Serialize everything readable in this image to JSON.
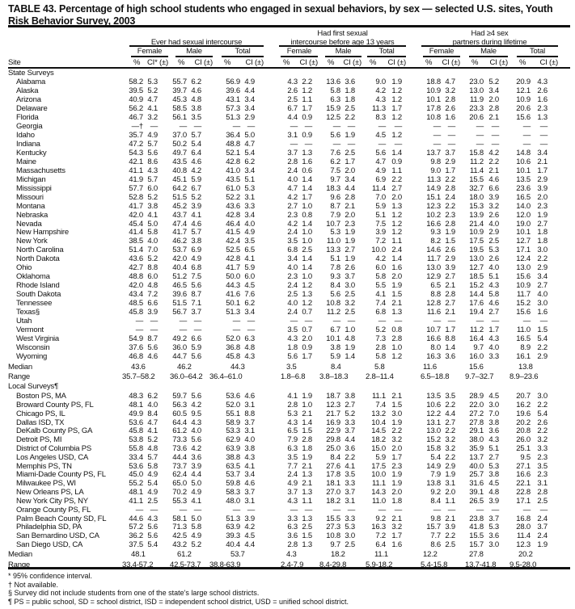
{
  "title": "TABLE 43. Percentage of high school students who engaged in sexual behaviors, by sex — selected U.S. sites, Youth Risk Behavior Survey, 2003",
  "header": {
    "site": "Site",
    "groups": [
      {
        "label_lines": [
          "",
          "Ever had sexual intercourse"
        ]
      },
      {
        "label_lines": [
          "Had first sexual",
          "intercourse before age 13 years"
        ]
      },
      {
        "label_lines": [
          "Had ≥4 sex",
          "partners during lifetime"
        ]
      }
    ],
    "sexes": [
      "Female",
      "Male",
      "Total"
    ],
    "pct": "%",
    "ci_first": "CI* (±)",
    "ci": "CI (±)"
  },
  "sections": [
    {
      "label": "State Surveys",
      "rows": [
        [
          "Alabama",
          "58.2",
          "5.3",
          "55.7",
          "6.2",
          "56.9",
          "4.9",
          "4.3",
          "2.2",
          "13.6",
          "3.6",
          "9.0",
          "1.9",
          "18.8",
          "4.7",
          "23.0",
          "5.2",
          "20.9",
          "4.3"
        ],
        [
          "Alaska",
          "39.5",
          "5.2",
          "39.7",
          "4.6",
          "39.6",
          "4.4",
          "2.6",
          "1.2",
          "5.8",
          "1.8",
          "4.2",
          "1.2",
          "10.9",
          "3.2",
          "13.0",
          "3.4",
          "12.1",
          "2.6"
        ],
        [
          "Arizona",
          "40.9",
          "4.7",
          "45.3",
          "4.8",
          "43.1",
          "3.4",
          "2.5",
          "1.1",
          "6.3",
          "1.8",
          "4.3",
          "1.2",
          "10.1",
          "2.8",
          "11.9",
          "2.0",
          "10.9",
          "1.6"
        ],
        [
          "Delaware",
          "56.2",
          "4.1",
          "58.5",
          "3.8",
          "57.3",
          "3.4",
          "6.7",
          "1.7",
          "15.9",
          "2.5",
          "11.3",
          "1.7",
          "17.8",
          "2.6",
          "23.3",
          "2.8",
          "20.6",
          "2.3"
        ],
        [
          "Florida",
          "46.7",
          "3.2",
          "56.1",
          "3.5",
          "51.3",
          "2.9",
          "4.4",
          "0.9",
          "12.5",
          "2.2",
          "8.3",
          "1.2",
          "10.8",
          "1.6",
          "20.6",
          "2.1",
          "15.6",
          "1.3"
        ],
        [
          "Georgia",
          "—†",
          "—",
          "—",
          "—",
          "—",
          "—",
          "—",
          "—",
          "—",
          "—",
          "—",
          "—",
          "—",
          "—",
          "—",
          "—",
          "—",
          "—"
        ],
        [
          "Idaho",
          "35.7",
          "4.9",
          "37.0",
          "5.7",
          "36.4",
          "5.0",
          "3.1",
          "0.9",
          "5.6",
          "1.9",
          "4.5",
          "1.2",
          "—",
          "—",
          "—",
          "—",
          "—",
          "—"
        ],
        [
          "Indiana",
          "47.2",
          "5.7",
          "50.2",
          "5.4",
          "48.8",
          "4.7",
          "—",
          "—",
          "—",
          "—",
          "—",
          "—",
          "—",
          "—",
          "—",
          "—",
          "—",
          "—"
        ],
        [
          "Kentucky",
          "54.3",
          "5.6",
          "49.7",
          "6.4",
          "52.1",
          "5.4",
          "3.7",
          "1.3",
          "7.6",
          "2.5",
          "5.6",
          "1.4",
          "13.7",
          "3.7",
          "15.8",
          "4.2",
          "14.8",
          "3.4"
        ],
        [
          "Maine",
          "42.1",
          "8.6",
          "43.5",
          "4.6",
          "42.8",
          "6.2",
          "2.8",
          "1.6",
          "6.2",
          "1.7",
          "4.7",
          "0.9",
          "9.8",
          "2.9",
          "11.2",
          "2.2",
          "10.6",
          "2.1"
        ],
        [
          "Massachusetts",
          "41.1",
          "4.3",
          "40.8",
          "4.2",
          "41.0",
          "3.4",
          "2.4",
          "0.6",
          "7.5",
          "2.0",
          "4.9",
          "1.1",
          "9.0",
          "1.7",
          "11.4",
          "2.1",
          "10.1",
          "1.7"
        ],
        [
          "Michigan",
          "41.9",
          "5.7",
          "45.1",
          "5.9",
          "43.5",
          "5.1",
          "4.0",
          "1.4",
          "9.7",
          "3.4",
          "6.9",
          "2.2",
          "11.3",
          "2.2",
          "15.5",
          "4.6",
          "13.5",
          "2.9"
        ],
        [
          "Mississippi",
          "57.7",
          "6.0",
          "64.2",
          "6.7",
          "61.0",
          "5.3",
          "4.7",
          "1.4",
          "18.3",
          "4.4",
          "11.4",
          "2.7",
          "14.9",
          "2.8",
          "32.7",
          "6.6",
          "23.6",
          "3.9"
        ],
        [
          "Missouri",
          "52.8",
          "5.2",
          "51.5",
          "5.2",
          "52.2",
          "3.1",
          "4.2",
          "1.7",
          "9.6",
          "2.8",
          "7.0",
          "2.0",
          "15.1",
          "2.4",
          "18.0",
          "3.9",
          "16.5",
          "2.0"
        ],
        [
          "Montana",
          "41.7",
          "3.8",
          "45.2",
          "3.9",
          "43.6",
          "3.3",
          "2.7",
          "1.0",
          "8.7",
          "2.1",
          "5.9",
          "1.3",
          "12.3",
          "2.2",
          "15.3",
          "3.2",
          "14.0",
          "2.3"
        ],
        [
          "Nebraska",
          "42.0",
          "4.1",
          "43.7",
          "4.1",
          "42.8",
          "3.4",
          "2.3",
          "0.8",
          "7.9",
          "2.0",
          "5.1",
          "1.2",
          "10.2",
          "2.3",
          "13.9",
          "2.6",
          "12.0",
          "1.9"
        ],
        [
          "Nevada",
          "45.4",
          "5.0",
          "47.4",
          "4.6",
          "46.4",
          "4.0",
          "4.2",
          "1.4",
          "10.7",
          "2.3",
          "7.5",
          "1.2",
          "16.6",
          "2.8",
          "21.4",
          "4.0",
          "19.0",
          "2.7"
        ],
        [
          "New Hampshire",
          "41.4",
          "5.8",
          "41.7",
          "5.7",
          "41.5",
          "4.9",
          "2.4",
          "1.0",
          "5.3",
          "1.9",
          "3.9",
          "1.2",
          "9.3",
          "1.9",
          "10.9",
          "2.9",
          "10.1",
          "1.8"
        ],
        [
          "New York",
          "38.5",
          "4.0",
          "46.2",
          "3.8",
          "42.4",
          "3.5",
          "3.5",
          "1.0",
          "11.0",
          "1.9",
          "7.2",
          "1.1",
          "8.2",
          "1.5",
          "17.5",
          "2.5",
          "12.7",
          "1.8"
        ],
        [
          "North Carolina",
          "51.4",
          "7.0",
          "53.7",
          "6.9",
          "52.5",
          "6.5",
          "6.8",
          "2.5",
          "13.3",
          "2.7",
          "10.0",
          "2.4",
          "14.6",
          "2.6",
          "19.5",
          "5.3",
          "17.1",
          "3.0"
        ],
        [
          "North Dakota",
          "43.6",
          "5.2",
          "42.0",
          "4.9",
          "42.8",
          "4.1",
          "3.4",
          "1.4",
          "5.1",
          "1.9",
          "4.2",
          "1.4",
          "11.7",
          "2.9",
          "13.0",
          "2.6",
          "12.4",
          "2.2"
        ],
        [
          "Ohio",
          "42.7",
          "8.8",
          "40.4",
          "6.8",
          "41.7",
          "5.9",
          "4.0",
          "1.4",
          "7.8",
          "2.6",
          "6.0",
          "1.6",
          "13.0",
          "3.9",
          "12.7",
          "4.0",
          "13.0",
          "2.9"
        ],
        [
          "Oklahoma",
          "48.8",
          "6.0",
          "51.2",
          "7.5",
          "50.0",
          "6.0",
          "2.3",
          "1.0",
          "9.3",
          "3.7",
          "5.8",
          "2.0",
          "12.9",
          "2.7",
          "18.5",
          "5.1",
          "15.6",
          "3.4"
        ],
        [
          "Rhode Island",
          "42.0",
          "4.8",
          "46.5",
          "5.6",
          "44.3",
          "4.5",
          "2.4",
          "1.2",
          "8.4",
          "3.0",
          "5.5",
          "1.9",
          "6.5",
          "2.1",
          "15.2",
          "4.3",
          "10.9",
          "2.7"
        ],
        [
          "South Dakota",
          "43.4",
          "7.2",
          "39.6",
          "8.7",
          "41.6",
          "7.6",
          "2.5",
          "1.3",
          "5.6",
          "2.5",
          "4.1",
          "1.5",
          "8.8",
          "2.8",
          "14.4",
          "5.8",
          "11.7",
          "4.0"
        ],
        [
          "Tennessee",
          "48.5",
          "6.6",
          "51.5",
          "7.1",
          "50.1",
          "6.2",
          "4.0",
          "1.2",
          "10.8",
          "3.2",
          "7.4",
          "2.1",
          "12.8",
          "2.7",
          "17.6",
          "4.6",
          "15.2",
          "3.0"
        ],
        [
          "Texas§",
          "45.8",
          "3.9",
          "56.7",
          "3.7",
          "51.3",
          "3.4",
          "2.4",
          "0.7",
          "11.2",
          "2.5",
          "6.8",
          "1.3",
          "11.6",
          "2.1",
          "19.4",
          "2.7",
          "15.6",
          "1.6"
        ],
        [
          "Utah",
          "—",
          "—",
          "—",
          "—",
          "—",
          "—",
          "—",
          "—",
          "—",
          "—",
          "—",
          "—",
          "—",
          "—",
          "—",
          "—",
          "—",
          "—"
        ],
        [
          "Vermont",
          "—",
          "—",
          "—",
          "—",
          "—",
          "—",
          "3.5",
          "0.7",
          "6.7",
          "1.0",
          "5.2",
          "0.8",
          "10.7",
          "1.7",
          "11.2",
          "1.7",
          "11.0",
          "1.5"
        ],
        [
          "West Virginia",
          "54.9",
          "8.7",
          "49.2",
          "6.6",
          "52.0",
          "6.3",
          "4.3",
          "2.0",
          "10.1",
          "4.8",
          "7.3",
          "2.8",
          "16.6",
          "8.8",
          "16.4",
          "4.3",
          "16.5",
          "5.4"
        ],
        [
          "Wisconsin",
          "37.6",
          "5.6",
          "36.0",
          "5.9",
          "36.8",
          "4.8",
          "1.8",
          "0.9",
          "3.8",
          "1.9",
          "2.8",
          "1.0",
          "8.0",
          "1.4",
          "9.7",
          "4.0",
          "8.9",
          "2.2"
        ],
        [
          "Wyoming",
          "46.8",
          "4.6",
          "44.7",
          "5.6",
          "45.8",
          "4.3",
          "5.6",
          "1.7",
          "5.9",
          "1.4",
          "5.8",
          "1.2",
          "16.3",
          "3.6",
          "16.0",
          "3.3",
          "16.1",
          "2.9"
        ]
      ],
      "median": {
        "label": "Median",
        "values": [
          "43.6",
          "46.2",
          "44.3",
          "3.5",
          "8.4",
          "5.8",
          "11.6",
          "15.6",
          "13.8"
        ]
      },
      "range": {
        "label": "Range",
        "values": [
          "35.7–58.2",
          "36.0–64.2",
          "36.4–61.0",
          "1.8–6.8",
          "3.8–18.3",
          "2.8–11.4",
          "6.5–18.8",
          "9.7–32.7",
          "8.9–23.6"
        ]
      }
    },
    {
      "label": "Local Surveys¶",
      "rows": [
        [
          "Boston PS, MA",
          "48.3",
          "6.2",
          "59.7",
          "5.6",
          "53.6",
          "4.6",
          "4.1",
          "1.9",
          "18.7",
          "3.8",
          "11.1",
          "2.1",
          "13.5",
          "3.5",
          "28.9",
          "4.5",
          "20.7",
          "3.0"
        ],
        [
          "Broward County PS, FL",
          "48.1",
          "4.0",
          "56.3",
          "4.2",
          "52.0",
          "3.1",
          "2.8",
          "1.0",
          "12.3",
          "2.7",
          "7.4",
          "1.5",
          "10.6",
          "2.2",
          "22.0",
          "3.0",
          "16.2",
          "2.2"
        ],
        [
          "Chicago PS, IL",
          "49.9",
          "8.4",
          "60.5",
          "9.5",
          "55.1",
          "8.8",
          "5.3",
          "2.1",
          "21.7",
          "5.2",
          "13.2",
          "3.0",
          "12.2",
          "4.4",
          "27.2",
          "7.0",
          "19.6",
          "5.4"
        ],
        [
          "Dallas ISD, TX",
          "53.6",
          "4.7",
          "64.4",
          "4.3",
          "58.9",
          "3.7",
          "4.3",
          "1.4",
          "16.9",
          "3.3",
          "10.4",
          "1.9",
          "13.1",
          "2.7",
          "27.8",
          "3.8",
          "20.2",
          "2.6"
        ],
        [
          "DeKalb County PS, GA",
          "45.8",
          "4.1",
          "61.2",
          "4.0",
          "53.3",
          "3.1",
          "6.5",
          "1.5",
          "22.9",
          "3.7",
          "14.5",
          "2.2",
          "13.0",
          "2.2",
          "29.1",
          "3.6",
          "20.8",
          "2.2"
        ],
        [
          "Detroit PS, MI",
          "53.8",
          "5.2",
          "73.3",
          "5.6",
          "62.9",
          "4.0",
          "7.9",
          "2.8",
          "29.8",
          "4.4",
          "18.2",
          "3.2",
          "15.2",
          "3.2",
          "38.0",
          "4.3",
          "26.0",
          "3.2"
        ],
        [
          "District of Columbia PS",
          "55.8",
          "4.8",
          "73.6",
          "4.2",
          "63.9",
          "3.8",
          "6.3",
          "1.8",
          "25.0",
          "3.6",
          "15.0",
          "2.0",
          "15.8",
          "3.2",
          "35.9",
          "5.1",
          "25.1",
          "3.3"
        ],
        [
          "Los Angeles USD, CA",
          "33.4",
          "5.7",
          "44.4",
          "3.6",
          "38.8",
          "4.3",
          "3.5",
          "1.9",
          "8.4",
          "2.2",
          "5.9",
          "1.7",
          "5.4",
          "2.2",
          "13.7",
          "2.7",
          "9.5",
          "2.3"
        ],
        [
          "Memphis PS, TN",
          "53.6",
          "5.8",
          "73.7",
          "3.9",
          "63.5",
          "4.1",
          "7.7",
          "2.1",
          "27.6",
          "4.1",
          "17.5",
          "2.3",
          "14.9",
          "2.9",
          "40.0",
          "5.3",
          "27.1",
          "3.5"
        ],
        [
          "Miami-Dade County PS, FL",
          "45.0",
          "4.9",
          "62.4",
          "4.4",
          "53.7",
          "3.4",
          "2.4",
          "1.3",
          "17.8",
          "3.5",
          "10.0",
          "1.9",
          "7.9",
          "1.9",
          "25.7",
          "3.8",
          "16.6",
          "2.3"
        ],
        [
          "Milwaukee PS, WI",
          "55.2",
          "5.4",
          "65.0",
          "5.0",
          "59.8",
          "4.6",
          "4.9",
          "2.1",
          "18.1",
          "3.3",
          "11.1",
          "1.9",
          "13.8",
          "3.1",
          "31.6",
          "4.5",
          "22.1",
          "3.1"
        ],
        [
          "New Orleans PS, LA",
          "48.1",
          "4.9",
          "70.2",
          "4.9",
          "58.3",
          "3.7",
          "3.7",
          "1.3",
          "27.0",
          "3.7",
          "14.3",
          "2.0",
          "9.2",
          "2.0",
          "39.1",
          "4.8",
          "22.8",
          "2.8"
        ],
        [
          "New York City PS, NY",
          "41.1",
          "2.5",
          "55.3",
          "4.1",
          "48.0",
          "3.1",
          "4.3",
          "1.1",
          "18.2",
          "3.1",
          "11.0",
          "1.8",
          "8.4",
          "1.1",
          "26.5",
          "3.9",
          "17.1",
          "2.5"
        ],
        [
          "Orange County PS, FL",
          "—",
          "—",
          "—",
          "—",
          "—",
          "—",
          "—",
          "—",
          "—",
          "—",
          "—",
          "—",
          "—",
          "—",
          "—",
          "—",
          "—",
          "—"
        ],
        [
          "Palm Beach County SD, FL",
          "44.6",
          "4.3",
          "58.1",
          "5.0",
          "51.3",
          "3.9",
          "3.3",
          "1.3",
          "15.5",
          "3.3",
          "9.2",
          "2.1",
          "9.8",
          "2.1",
          "23.8",
          "3.7",
          "16.8",
          "2.4"
        ],
        [
          "Philadelphia SD, PA",
          "57.2",
          "5.6",
          "71.3",
          "5.8",
          "63.9",
          "4.2",
          "6.3",
          "2.5",
          "27.3",
          "5.3",
          "16.3",
          "3.2",
          "15.7",
          "3.9",
          "41.8",
          "5.3",
          "28.0",
          "3.7"
        ],
        [
          "San Bernardino USD, CA",
          "36.2",
          "5.6",
          "42.5",
          "4.9",
          "39.3",
          "4.5",
          "3.6",
          "1.5",
          "10.8",
          "3.0",
          "7.2",
          "1.7",
          "7.7",
          "2.2",
          "15.5",
          "3.6",
          "11.4",
          "2.4"
        ],
        [
          "San Diego USD, CA",
          "37.5",
          "5.4",
          "43.2",
          "5.2",
          "40.4",
          "4.4",
          "2.8",
          "1.3",
          "9.7",
          "2.5",
          "6.4",
          "1.6",
          "8.6",
          "2.5",
          "15.7",
          "3.0",
          "12.3",
          "1.9"
        ]
      ],
      "median": {
        "label": "Median",
        "values": [
          "48.1",
          "61.2",
          "53.7",
          "4.3",
          "18.2",
          "11.1",
          "12.2",
          "27.8",
          "20.2"
        ]
      },
      "range": {
        "label": "Range",
        "values": [
          "33.4-57.2",
          "42.5-73.7",
          "38.8-63.9",
          "2.4-7.9",
          "8.4-29.8",
          "5.9-18.2",
          "5.4-15.8",
          "13.7-41.8",
          "9.5-28.0"
        ]
      }
    }
  ],
  "footnotes": [
    "* 95% confidence interval.",
    "† Not available.",
    "§ Survey did not include students from one of the state's large school districts.",
    "¶ PS = public school, SD = school district, ISD = independent school district, USD = unified school district."
  ]
}
